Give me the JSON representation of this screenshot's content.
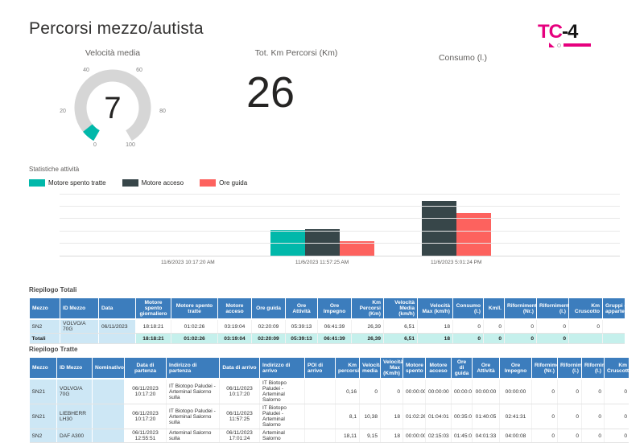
{
  "page": {
    "title": "Percorsi mezzo/autista"
  },
  "logo": {
    "part1": "TC",
    "part2": "-4",
    "accent": "#E6007E"
  },
  "gauge": {
    "title": "Velocità media",
    "value": "7",
    "min": 0,
    "max": 100,
    "tick_labels": [
      "0",
      "20",
      "40",
      "60",
      "80",
      "100"
    ],
    "track_color": "#D6D6D6",
    "fill_color": "#01B8AA"
  },
  "km_card": {
    "title": "Tot. Km Percorsi (Km)",
    "value": "26"
  },
  "consumo_card": {
    "title": "Consumo (l.)",
    "value": ""
  },
  "chart_data": {
    "type": "bar",
    "title": "Statistiche attività",
    "categories": [
      "11/6/2023 10:17:20 AM",
      "11/6/2023 11:57:25 AM",
      "11/6/2023 5:01:24 PM"
    ],
    "series": [
      {
        "name": "Motore spento tratte",
        "color": "#01B8AA",
        "values": [
          0,
          1.04,
          0
        ],
        "source_durations": [
          "00:00:00",
          "01:02:26",
          "00:00:00"
        ]
      },
      {
        "name": "Motore acceso",
        "color": "#374649",
        "values": [
          0,
          1.07,
          2.25
        ],
        "source_durations": [
          "00:00:00",
          "01:04:01",
          "02:15:03"
        ]
      },
      {
        "name": "Ore guida",
        "color": "#FD625E",
        "values": [
          0,
          0.58,
          1.75
        ],
        "source_durations": [
          "00:00:00",
          "00:35:04",
          "01:45:05"
        ]
      }
    ],
    "xlabel": "",
    "ylabel": "",
    "values_unit": "hours",
    "ylim": [
      0,
      2.5
    ],
    "gridlines": 5,
    "grid": true,
    "legend_position": "top"
  },
  "tables": {
    "totali": {
      "title": "Riepilogo Totali",
      "columns": [
        "Mezzo",
        "ID Mezzo",
        "Data",
        "Motore spento giornaliero",
        "Motore spento tratte",
        "Motore acceso",
        "Ore guida",
        "Ore Attività",
        "Ore Impegno",
        "Km Percorsi (Km)",
        "Velocità Media (km/h)",
        "Velocità Max (km/h)",
        "Consumo (l.)",
        "Km/l.",
        "Rifornimenti (Nr.)",
        "Rifornimento (l.)",
        "Km Cruscotto",
        "Gruppi di apparte"
      ],
      "rows": [
        [
          "SN2",
          "VOLVO/A 70G",
          "06/11/2023",
          "18:18:21",
          "01:02:26",
          "03:19:04",
          "02:20:09",
          "05:39:13",
          "06:41:39",
          "26,39",
          "6,51",
          "18",
          "0",
          "0",
          "0",
          "0",
          "0",
          ""
        ]
      ],
      "total_row": [
        "Totali",
        "",
        "",
        "18:18:21",
        "01:02:26",
        "03:19:04",
        "02:20:09",
        "05:39:13",
        "06:41:39",
        "26,39",
        "6,51",
        "18",
        "0",
        "0",
        "0",
        "0",
        "",
        ""
      ]
    },
    "tratte": {
      "title": "Riepilogo Tratte",
      "columns": [
        "Mezzo",
        "ID Mezzo",
        "Nominativo",
        "Data di partenza",
        "Indirizzo di partenza",
        "Data di arrivo",
        "Indirizzo di arrivo",
        "POI di arrivo",
        "Km percorsi",
        "Velocità media",
        "Velocità Max (Km/h)",
        "Motore spento",
        "Motore acceso",
        "Ore di guida",
        "Ore Attività",
        "Ore Impegno",
        "Rifornimenti (Nr.)",
        "Rifornimenti (l.)",
        "Rifornimenti (l.)",
        "Km Cruscotto"
      ],
      "rows": [
        [
          "SN21",
          "VOLVO/A 70G",
          "",
          "06/11/2023 10:17:20",
          "IT Biotopo Paludei - Arteminal Salorno sulla",
          "06/11/2023 10:17:20",
          "IT Biotopo Paludei - Arteminal Salorno",
          "",
          "0,16",
          "0",
          "0",
          "00:00:00",
          "00:00:00",
          "00:00:00",
          "00:00:00",
          "00:00:00",
          "0",
          "0",
          "0",
          "0"
        ],
        [
          "SN21",
          "LIEBHERR LH30",
          "",
          "06/11/2023 10:17:20",
          "IT Biotopo Paludei - Arteminal Salorno sulla",
          "06/11/2023 11:57:25",
          "IT Biotopo Paludei - Arteminal Salorno",
          "",
          "8,1",
          "10,38",
          "18",
          "01:02:26",
          "01:04:01",
          "00:35:04",
          "01:40:05",
          "02:41:31",
          "0",
          "0",
          "0",
          "0"
        ],
        [
          "SN2",
          "DAF A300",
          "",
          "06/11/2023 12:55:51",
          "Arteminal Salorno sulla",
          "06/11/2023 17:01:24",
          "Arteminal Salorno",
          "",
          "18,11",
          "9,15",
          "18",
          "00:00:00",
          "02:15:03",
          "01:45:05",
          "04:01:33",
          "04:00:08",
          "0",
          "0",
          "0",
          "0"
        ]
      ]
    }
  },
  "theme": {
    "accent_teal": "#01B8AA",
    "accent_dark": "#374649",
    "accent_red": "#FD625E",
    "table_header_blue": "#3C7DBD",
    "frozen_cell_blue": "#CDE7F5",
    "total_row_teal": "#C5F0EC",
    "logo_magenta": "#E6007E"
  }
}
